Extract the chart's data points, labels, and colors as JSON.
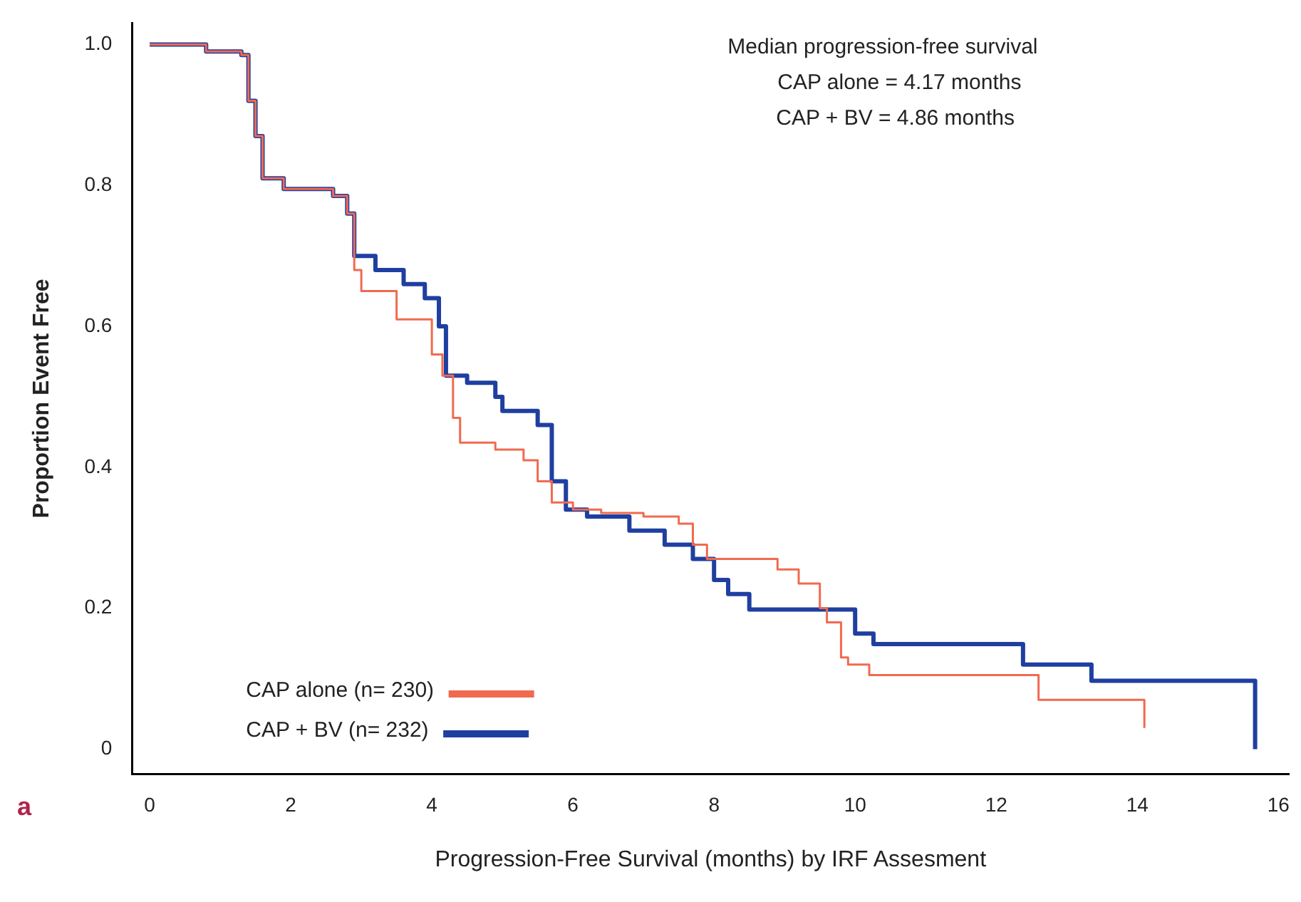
{
  "chart_data": {
    "type": "step",
    "xlabel": "Progression-Free Survival (months) by IRF Assesment",
    "ylabel": "Proportion Event Free",
    "annotations": [
      "Median progression-free survival",
      "CAP alone = 4.17 months",
      "CAP + BV = 4.86 months",
      "a"
    ],
    "xlim": [
      -0.25,
      16.15
    ],
    "xticks": [
      0,
      2,
      4,
      6,
      8,
      10,
      12,
      14,
      16
    ],
    "ylim": [
      -0.035,
      1.03
    ],
    "yticks": [
      {
        "value": 0,
        "label": "0"
      },
      0.2,
      0.4,
      0.6,
      0.8,
      {
        "value": 1,
        "label": "1.0"
      }
    ],
    "grid": false,
    "legend": "bottom left",
    "marker": "none",
    "series": [
      {
        "name": "CAP alone (n= 230)",
        "color": "#f06a50",
        "x": [
          0,
          0.7,
          0.8,
          1.3,
          1.4,
          1.5,
          1.6,
          1.9,
          2.6,
          2.8,
          2.9,
          3.0,
          3.5,
          4.0,
          4.15,
          4.3,
          4.4,
          4.9,
          5.3,
          5.5,
          5.7,
          6.0,
          6.4,
          7.0,
          7.5,
          7.7,
          7.9,
          8.9,
          9.2,
          9.5,
          9.6,
          9.8,
          9.9,
          10.2,
          12.6,
          14.1,
          14.1
        ],
        "values": [
          1,
          1,
          0.99,
          0.985,
          0.92,
          0.87,
          0.81,
          0.795,
          0.785,
          0.76,
          0.68,
          0.65,
          0.61,
          0.56,
          0.53,
          0.47,
          0.435,
          0.425,
          0.41,
          0.38,
          0.35,
          0.34,
          0.335,
          0.33,
          0.32,
          0.29,
          0.27,
          0.255,
          0.235,
          0.2,
          0.18,
          0.13,
          0.12,
          0.105,
          0.07,
          0.07,
          0.03
        ]
      },
      {
        "name": "CAP + BV (n= 232)",
        "color": "#1f3fa0",
        "x": [
          0,
          0.7,
          0.8,
          1.3,
          1.4,
          1.5,
          1.6,
          1.9,
          2.6,
          2.8,
          2.9,
          3.2,
          3.6,
          3.9,
          4.1,
          4.2,
          4.5,
          4.9,
          5.0,
          5.5,
          5.7,
          5.9,
          6.2,
          6.8,
          7.3,
          7.7,
          8.0,
          8.2,
          8.5,
          10.0,
          10.26,
          12.38,
          13.35,
          15.67,
          15.67
        ],
        "values": [
          1,
          1,
          0.99,
          0.985,
          0.92,
          0.87,
          0.81,
          0.795,
          0.785,
          0.76,
          0.7,
          0.68,
          0.66,
          0.64,
          0.6,
          0.53,
          0.52,
          0.5,
          0.48,
          0.46,
          0.38,
          0.34,
          0.33,
          0.31,
          0.29,
          0.27,
          0.24,
          0.22,
          0.198,
          0.164,
          0.149,
          0.12,
          0.097,
          0.097,
          0
        ]
      }
    ]
  }
}
